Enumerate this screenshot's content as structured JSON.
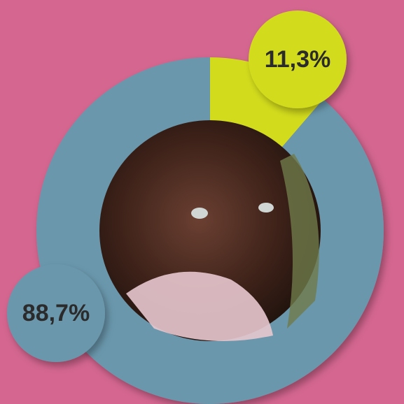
{
  "chart_data": {
    "type": "pie",
    "donut": true,
    "values": [
      11.3,
      88.7
    ],
    "value_labels": [
      "11,3%",
      "88,7%"
    ],
    "colors": [
      "#d3dc1e",
      "#6a97ac"
    ]
  }
}
